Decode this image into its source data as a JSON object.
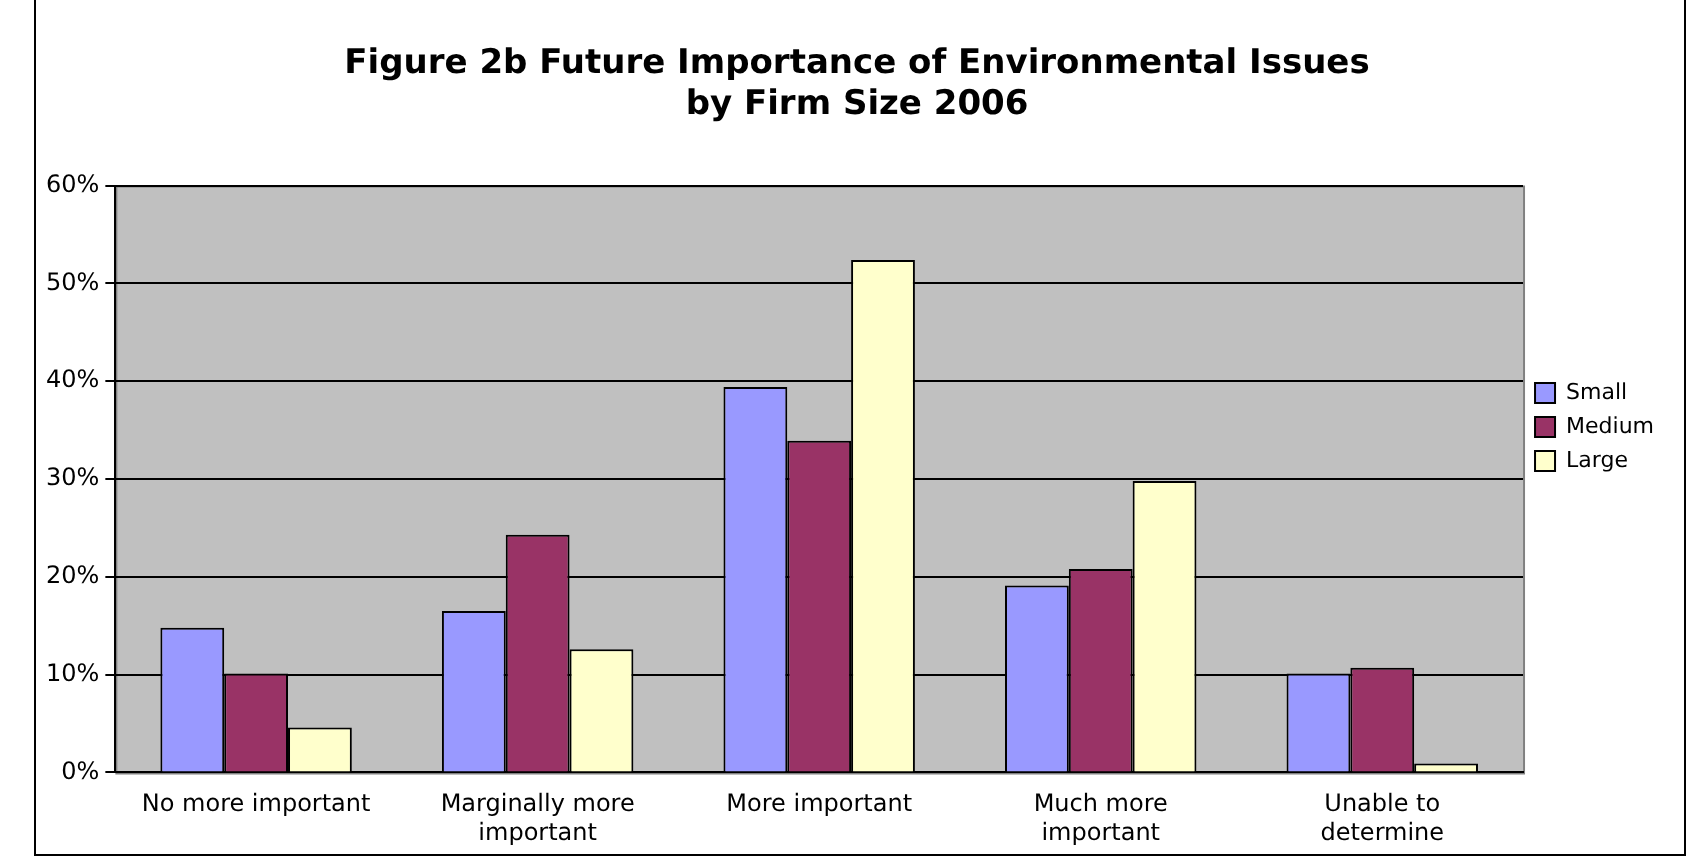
{
  "chart_data": {
    "type": "bar",
    "title": "Figure 2b Future Importance of Environmental Issues\nby Firm Size 2006",
    "categories": [
      "No more important",
      "Marginally more important",
      "More important",
      "Much more important",
      "Unable to determine"
    ],
    "series": [
      {
        "name": "Small",
        "color": "#9999ff",
        "values": [
          14.8,
          16.5,
          39.4,
          19.1,
          10.1
        ]
      },
      {
        "name": "Medium",
        "color": "#993366",
        "values": [
          10.1,
          24.3,
          33.9,
          20.8,
          10.7
        ]
      },
      {
        "name": "Large",
        "color": "#ffffcc",
        "values": [
          4.6,
          12.6,
          52.4,
          29.8,
          0.9
        ]
      }
    ],
    "ylim": [
      0,
      60
    ],
    "yticks": [
      {
        "value": 0,
        "label": "0%"
      },
      {
        "value": 10,
        "label": "10%"
      },
      {
        "value": 20,
        "label": "20%"
      },
      {
        "value": 30,
        "label": "30%"
      },
      {
        "value": 40,
        "label": "40%"
      },
      {
        "value": 50,
        "label": "50%"
      },
      {
        "value": 60,
        "label": "60%"
      }
    ],
    "grid": "y",
    "legend": "right"
  }
}
